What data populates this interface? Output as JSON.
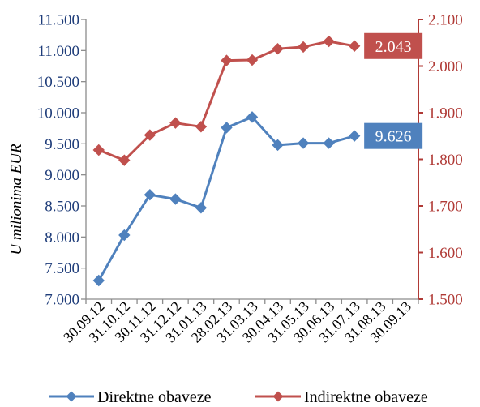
{
  "chart_data": {
    "type": "line",
    "categories": [
      "30.09.12",
      "31.10.12",
      "30.11.12",
      "31.12.12",
      "31.01.13",
      "28.02.13",
      "31.03.13",
      "30.04.13",
      "31.05.13",
      "30.06.13",
      "31.07.13",
      "31.08.13",
      "30.09.13"
    ],
    "ylabel": "U milionima EUR",
    "y_left": {
      "min": 7000,
      "max": 11500,
      "ticks": [
        7000,
        7500,
        8000,
        8500,
        9000,
        9500,
        10000,
        10500,
        11000,
        11500
      ],
      "tick_labels": [
        "7.000",
        "7.500",
        "8.000",
        "8.500",
        "9.000",
        "9.500",
        "10.000",
        "10.500",
        "11.000",
        "11.500"
      ],
      "color": "#1f3d7a"
    },
    "y_right": {
      "min": 1500,
      "max": 2100,
      "ticks": [
        1500,
        1600,
        1700,
        1800,
        1900,
        2000,
        2100
      ],
      "tick_labels": [
        "1.500",
        "1.600",
        "1.700",
        "1.800",
        "1.900",
        "2.000",
        "2.100"
      ],
      "color": "#b03a36"
    },
    "series": [
      {
        "name": "Direktne obaveze",
        "axis": "left",
        "color": "#4f81bd",
        "values": [
          7300,
          8030,
          8680,
          8610,
          8470,
          9760,
          9930,
          9480,
          9510,
          9510,
          9626,
          null,
          null
        ],
        "end_label": "9.626"
      },
      {
        "name": "Indirektne obaveze",
        "axis": "right",
        "color": "#c0504d",
        "values": [
          1820,
          1798,
          1852,
          1878,
          1870,
          2012,
          2013,
          2037,
          2041,
          2053,
          2043,
          null,
          null
        ],
        "end_label": "2.043"
      }
    ],
    "legend_position": "bottom",
    "grid": false
  }
}
